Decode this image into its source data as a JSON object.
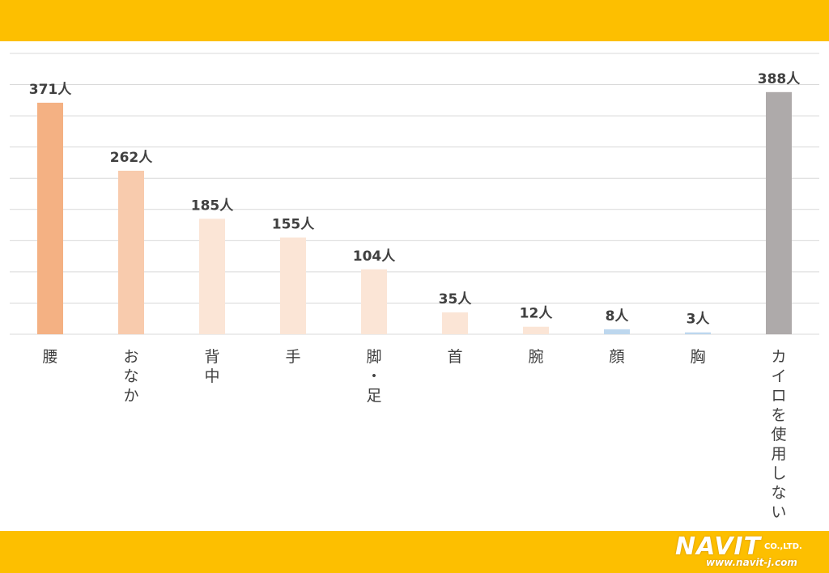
{
  "chart_data": {
    "type": "bar",
    "categories": [
      "腰",
      "おなか",
      "背中",
      "手",
      "脚・足",
      "首",
      "腕",
      "顔",
      "胸",
      "カイロを使用しない"
    ],
    "values": [
      371,
      262,
      185,
      155,
      104,
      35,
      12,
      8,
      3,
      388
    ],
    "value_labels": [
      "371人",
      "262人",
      "185人",
      "155人",
      "104人",
      "35人",
      "12人",
      "8人",
      "3人",
      "388人"
    ],
    "bar_colors": [
      "#f4b183",
      "#f8cbad",
      "#fbe5d6",
      "#fbe5d6",
      "#fbe5d6",
      "#fbe5d6",
      "#fbe5d6",
      "#bdd7ee",
      "#bdd7ee",
      "#aeaaaa"
    ],
    "ylim": [
      0,
      450
    ],
    "grid": true,
    "title": "",
    "xlabel": "",
    "ylabel": ""
  },
  "colors": {
    "banner": "#fdbf00",
    "text": "#404040",
    "grid": "#d9d9d9"
  },
  "logo": {
    "brand": "NAVIT",
    "suffix": "CO.,LTD.",
    "url": "www.navit-j.com"
  }
}
